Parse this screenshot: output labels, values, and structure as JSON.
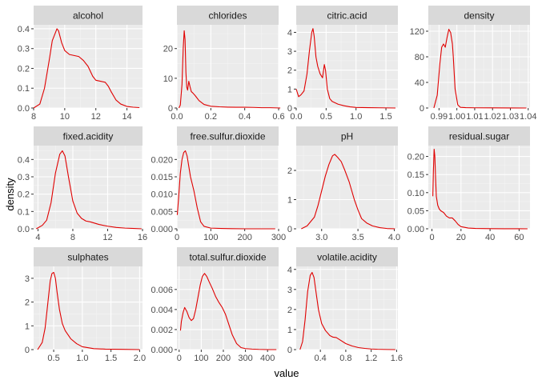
{
  "chart_data": {
    "type": "line",
    "facet_layout": "facet_wrap",
    "ncol": 4,
    "xlabel": "value",
    "ylabel": "density",
    "line_color": "#e00000",
    "panel_bg": "#ebebeb",
    "strip_bg": "#d9d9d9",
    "grid": true,
    "scales": "free",
    "panels": [
      {
        "name": "alcohol",
        "xlim": [
          8,
          15
        ],
        "ylim": [
          0,
          0.42
        ],
        "xticks": [
          {
            "v": 8,
            "label": "8"
          },
          {
            "v": 10,
            "label": "10"
          },
          {
            "v": 12,
            "label": "12"
          },
          {
            "v": 14,
            "label": "14"
          }
        ],
        "yticks": [
          {
            "v": 0,
            "label": "0.0"
          },
          {
            "v": 0.1,
            "label": "0.1"
          },
          {
            "v": 0.2,
            "label": "0.2"
          },
          {
            "v": 0.3,
            "label": "0.3"
          },
          {
            "v": 0.4,
            "label": "0.4"
          }
        ],
        "x": [
          8.0,
          8.4,
          8.7,
          9.0,
          9.2,
          9.4,
          9.5,
          9.6,
          9.8,
          10.0,
          10.3,
          10.6,
          10.9,
          11.2,
          11.5,
          11.8,
          12.0,
          12.3,
          12.6,
          12.8,
          13.0,
          13.3,
          13.6,
          14.0,
          14.4,
          14.8
        ],
        "y": [
          0.0,
          0.02,
          0.1,
          0.24,
          0.34,
          0.38,
          0.4,
          0.39,
          0.33,
          0.29,
          0.27,
          0.265,
          0.26,
          0.24,
          0.21,
          0.16,
          0.14,
          0.135,
          0.13,
          0.11,
          0.08,
          0.04,
          0.02,
          0.008,
          0.004,
          0.002
        ]
      },
      {
        "name": "chlorides",
        "xlim": [
          0.0,
          0.6
        ],
        "ylim": [
          0,
          28
        ],
        "xticks": [
          {
            "v": 0.0,
            "label": "0.0"
          },
          {
            "v": 0.2,
            "label": "0.2"
          },
          {
            "v": 0.4,
            "label": "0.4"
          },
          {
            "v": 0.6,
            "label": "0.6"
          }
        ],
        "yticks": [
          {
            "v": 0,
            "label": "0"
          },
          {
            "v": 10,
            "label": "10"
          },
          {
            "v": 20,
            "label": "20"
          }
        ],
        "x": [
          0.012,
          0.02,
          0.03,
          0.037,
          0.043,
          0.048,
          0.053,
          0.058,
          0.063,
          0.07,
          0.078,
          0.085,
          0.095,
          0.11,
          0.13,
          0.16,
          0.2,
          0.25,
          0.3,
          0.35,
          0.4,
          0.45,
          0.5,
          0.55,
          0.61
        ],
        "y": [
          0.0,
          1.0,
          8.0,
          20.0,
          26.0,
          23.0,
          12.0,
          7.0,
          6.0,
          9.0,
          7.0,
          5.5,
          5.0,
          4.0,
          2.5,
          1.2,
          0.6,
          0.4,
          0.3,
          0.25,
          0.25,
          0.2,
          0.1,
          0.1,
          0.0
        ]
      },
      {
        "name": "citric.acid",
        "xlim": [
          0.0,
          1.7
        ],
        "ylim": [
          0,
          4.4
        ],
        "xticks": [
          {
            "v": 0.0,
            "label": "0.0"
          },
          {
            "v": 0.5,
            "label": "0.5"
          },
          {
            "v": 1.0,
            "label": "1.0"
          },
          {
            "v": 1.5,
            "label": "1.5"
          }
        ],
        "yticks": [
          {
            "v": 0,
            "label": "0"
          },
          {
            "v": 1,
            "label": "1"
          },
          {
            "v": 2,
            "label": "2"
          },
          {
            "v": 3,
            "label": "3"
          },
          {
            "v": 4,
            "label": "4"
          }
        ],
        "x": [
          0.0,
          0.04,
          0.08,
          0.13,
          0.18,
          0.22,
          0.26,
          0.28,
          0.3,
          0.33,
          0.36,
          0.4,
          0.44,
          0.47,
          0.49,
          0.52,
          0.56,
          0.6,
          0.7,
          0.8,
          0.9,
          1.0,
          1.2,
          1.4,
          1.66
        ],
        "y": [
          1.0,
          0.6,
          0.7,
          0.9,
          1.8,
          3.0,
          4.0,
          4.2,
          3.8,
          2.7,
          2.2,
          1.8,
          1.6,
          2.3,
          2.0,
          1.0,
          0.5,
          0.35,
          0.2,
          0.12,
          0.06,
          0.03,
          0.02,
          0.01,
          0.0
        ]
      },
      {
        "name": "density",
        "xlim": [
          0.984,
          1.041
        ],
        "ylim": [
          0,
          130
        ],
        "xticks": [
          {
            "v": 0.99,
            "label": "0.99"
          },
          {
            "v": 1.0,
            "label": "1.00"
          },
          {
            "v": 1.01,
            "label": "1.01"
          },
          {
            "v": 1.02,
            "label": "1.02"
          },
          {
            "v": 1.03,
            "label": "1.03"
          },
          {
            "v": 1.04,
            "label": "1.04"
          }
        ],
        "yticks": [
          {
            "v": 0,
            "label": "0"
          },
          {
            "v": 40,
            "label": "40"
          },
          {
            "v": 80,
            "label": "80"
          },
          {
            "v": 120,
            "label": "120"
          }
        ],
        "x": [
          0.9871,
          0.989,
          0.9905,
          0.9915,
          0.9925,
          0.9935,
          0.9945,
          0.9955,
          0.9965,
          0.9975,
          0.998,
          0.999,
          1.0005,
          1.002,
          1.005,
          1.01,
          1.02,
          1.03,
          1.039
        ],
        "y": [
          0.0,
          20.0,
          70.0,
          95.0,
          100.0,
          95.0,
          110.0,
          123.0,
          118.0,
          100.0,
          80.0,
          30.0,
          5.0,
          1.0,
          0.5,
          0.3,
          0.2,
          0.1,
          0.0
        ]
      },
      {
        "name": "fixed.acidity",
        "xlim": [
          3.5,
          16.0
        ],
        "ylim": [
          0,
          0.48
        ],
        "xticks": [
          {
            "v": 4,
            "label": "4"
          },
          {
            "v": 8,
            "label": "8"
          },
          {
            "v": 12,
            "label": "12"
          },
          {
            "v": 16,
            "label": "16"
          }
        ],
        "yticks": [
          {
            "v": 0,
            "label": "0.0"
          },
          {
            "v": 0.1,
            "label": "0.1"
          },
          {
            "v": 0.2,
            "label": "0.2"
          },
          {
            "v": 0.3,
            "label": "0.3"
          },
          {
            "v": 0.4,
            "label": "0.4"
          }
        ],
        "x": [
          3.8,
          4.5,
          5.0,
          5.5,
          6.0,
          6.5,
          6.8,
          7.1,
          7.5,
          8.0,
          8.5,
          9.0,
          9.5,
          10.0,
          11.0,
          12.0,
          13.0,
          14.0,
          15.0,
          15.9
        ],
        "y": [
          0.0,
          0.02,
          0.05,
          0.15,
          0.32,
          0.43,
          0.45,
          0.42,
          0.3,
          0.16,
          0.09,
          0.06,
          0.045,
          0.04,
          0.025,
          0.015,
          0.008,
          0.004,
          0.002,
          0.0
        ]
      },
      {
        "name": "free.sulfur.dioxide",
        "xlim": [
          0,
          300
        ],
        "ylim": [
          0,
          0.024
        ],
        "xticks": [
          {
            "v": 0,
            "label": "0"
          },
          {
            "v": 100,
            "label": "100"
          },
          {
            "v": 200,
            "label": "200"
          },
          {
            "v": 300,
            "label": "300"
          }
        ],
        "yticks": [
          {
            "v": 0,
            "label": "0.000"
          },
          {
            "v": 0.005,
            "label": "0.005"
          },
          {
            "v": 0.01,
            "label": "0.010"
          },
          {
            "v": 0.015,
            "label": "0.015"
          },
          {
            "v": 0.02,
            "label": "0.020"
          }
        ],
        "x": [
          1,
          5,
          10,
          15,
          20,
          25,
          30,
          35,
          40,
          45,
          50,
          60,
          70,
          80,
          100,
          130,
          160,
          200,
          250,
          290
        ],
        "y": [
          0.004,
          0.009,
          0.016,
          0.02,
          0.022,
          0.0225,
          0.021,
          0.018,
          0.015,
          0.013,
          0.011,
          0.006,
          0.002,
          0.0007,
          0.0002,
          0.0001,
          5e-05,
          0.0,
          0.0,
          0.0
        ]
      },
      {
        "name": "pH",
        "xlim": [
          2.65,
          4.05
        ],
        "ylim": [
          0,
          2.85
        ],
        "xticks": [
          {
            "v": 3.0,
            "label": "3.0"
          },
          {
            "v": 3.5,
            "label": "3.5"
          },
          {
            "v": 4.0,
            "label": "4.0"
          }
        ],
        "yticks": [
          {
            "v": 0,
            "label": "0"
          },
          {
            "v": 1,
            "label": "1"
          },
          {
            "v": 2,
            "label": "2"
          }
        ],
        "x": [
          2.72,
          2.8,
          2.9,
          2.95,
          3.0,
          3.05,
          3.1,
          3.15,
          3.18,
          3.22,
          3.27,
          3.32,
          3.38,
          3.45,
          3.5,
          3.55,
          3.62,
          3.7,
          3.8,
          3.9,
          4.01
        ],
        "y": [
          0.0,
          0.1,
          0.4,
          0.8,
          1.3,
          1.8,
          2.2,
          2.5,
          2.55,
          2.45,
          2.3,
          2.0,
          1.6,
          1.0,
          0.65,
          0.35,
          0.2,
          0.1,
          0.04,
          0.01,
          0.0
        ]
      },
      {
        "name": "residual.sugar",
        "xlim": [
          -2.5,
          67.5
        ],
        "ylim": [
          0,
          0.23
        ],
        "xticks": [
          {
            "v": 0,
            "label": "0"
          },
          {
            "v": 20,
            "label": "20"
          },
          {
            "v": 40,
            "label": "40"
          },
          {
            "v": 60,
            "label": "60"
          }
        ],
        "yticks": [
          {
            "v": 0,
            "label": "0.00"
          },
          {
            "v": 0.05,
            "label": "0.05"
          },
          {
            "v": 0.1,
            "label": "0.10"
          },
          {
            "v": 0.15,
            "label": "0.15"
          },
          {
            "v": 0.2,
            "label": "0.20"
          }
        ],
        "x": [
          0.6,
          1.0,
          1.5,
          2.0,
          2.5,
          3.0,
          4.0,
          5.0,
          6.0,
          8.0,
          10.0,
          12.0,
          14.0,
          16.0,
          18.0,
          20.0,
          25.0,
          30.0,
          40.0,
          50.0,
          60.0,
          65.8
        ],
        "y": [
          0.09,
          0.16,
          0.22,
          0.2,
          0.14,
          0.09,
          0.065,
          0.055,
          0.05,
          0.045,
          0.035,
          0.03,
          0.03,
          0.022,
          0.012,
          0.006,
          0.002,
          0.001,
          0.0005,
          0.0002,
          0.0001,
          0.0
        ]
      },
      {
        "name": "sulphates",
        "xlim": [
          0.15,
          2.05
        ],
        "ylim": [
          0,
          3.5
        ],
        "xticks": [
          {
            "v": 0.5,
            "label": "0.5"
          },
          {
            "v": 1.0,
            "label": "1.0"
          },
          {
            "v": 1.5,
            "label": "1.5"
          },
          {
            "v": 2.0,
            "label": "2.0"
          }
        ],
        "yticks": [
          {
            "v": 0,
            "label": "0"
          },
          {
            "v": 1,
            "label": "1"
          },
          {
            "v": 2,
            "label": "2"
          },
          {
            "v": 3,
            "label": "3"
          }
        ],
        "x": [
          0.22,
          0.3,
          0.35,
          0.4,
          0.44,
          0.47,
          0.5,
          0.53,
          0.56,
          0.6,
          0.65,
          0.7,
          0.8,
          0.9,
          1.0,
          1.2,
          1.4,
          1.7,
          2.0
        ],
        "y": [
          0.0,
          0.3,
          0.9,
          2.0,
          2.9,
          3.2,
          3.25,
          3.0,
          2.4,
          1.7,
          1.1,
          0.8,
          0.45,
          0.25,
          0.12,
          0.04,
          0.02,
          0.01,
          0.0
        ]
      },
      {
        "name": "total.sulfur.dioxide",
        "xlim": [
          -10,
          450
        ],
        "ylim": [
          0,
          0.0083
        ],
        "xticks": [
          {
            "v": 0,
            "label": "0"
          },
          {
            "v": 100,
            "label": "100"
          },
          {
            "v": 200,
            "label": "200"
          },
          {
            "v": 300,
            "label": "300"
          },
          {
            "v": 400,
            "label": "400"
          }
        ],
        "yticks": [
          {
            "v": 0,
            "label": "0.000"
          },
          {
            "v": 0.002,
            "label": "0.002"
          },
          {
            "v": 0.004,
            "label": "0.004"
          },
          {
            "v": 0.006,
            "label": "0.006"
          }
        ],
        "x": [
          6,
          10,
          18,
          25,
          35,
          45,
          55,
          65,
          75,
          85,
          95,
          105,
          115,
          125,
          135,
          150,
          165,
          180,
          195,
          210,
          225,
          240,
          260,
          280,
          300,
          330,
          360,
          400,
          440
        ],
        "y": [
          0.0019,
          0.0028,
          0.0037,
          0.0042,
          0.0038,
          0.0032,
          0.0029,
          0.0031,
          0.004,
          0.0052,
          0.0064,
          0.0073,
          0.0076,
          0.0073,
          0.0068,
          0.0061,
          0.0053,
          0.0047,
          0.0042,
          0.0035,
          0.0025,
          0.0015,
          0.0006,
          0.0002,
          0.0001,
          5e-05,
          2e-05,
          0.0,
          0.0
        ]
      },
      {
        "name": "volatile.acidity",
        "xlim": [
          0.02,
          1.62
        ],
        "ylim": [
          0,
          4.15
        ],
        "xticks": [
          {
            "v": 0.4,
            "label": "0.4"
          },
          {
            "v": 0.8,
            "label": "0.8"
          },
          {
            "v": 1.2,
            "label": "1.2"
          },
          {
            "v": 1.6,
            "label": "1.6"
          }
        ],
        "yticks": [
          {
            "v": 0,
            "label": "0"
          },
          {
            "v": 1,
            "label": "1"
          },
          {
            "v": 2,
            "label": "2"
          },
          {
            "v": 3,
            "label": "3"
          },
          {
            "v": 4,
            "label": "4"
          }
        ],
        "x": [
          0.08,
          0.12,
          0.16,
          0.2,
          0.24,
          0.27,
          0.3,
          0.33,
          0.37,
          0.42,
          0.48,
          0.55,
          0.6,
          0.65,
          0.7,
          0.8,
          0.9,
          1.0,
          1.1,
          1.2,
          1.3,
          1.45,
          1.58
        ],
        "y": [
          0.0,
          0.4,
          1.5,
          2.9,
          3.7,
          3.85,
          3.6,
          2.9,
          2.0,
          1.3,
          0.95,
          0.7,
          0.62,
          0.6,
          0.5,
          0.3,
          0.18,
          0.1,
          0.06,
          0.03,
          0.015,
          0.005,
          0.0
        ]
      }
    ]
  }
}
